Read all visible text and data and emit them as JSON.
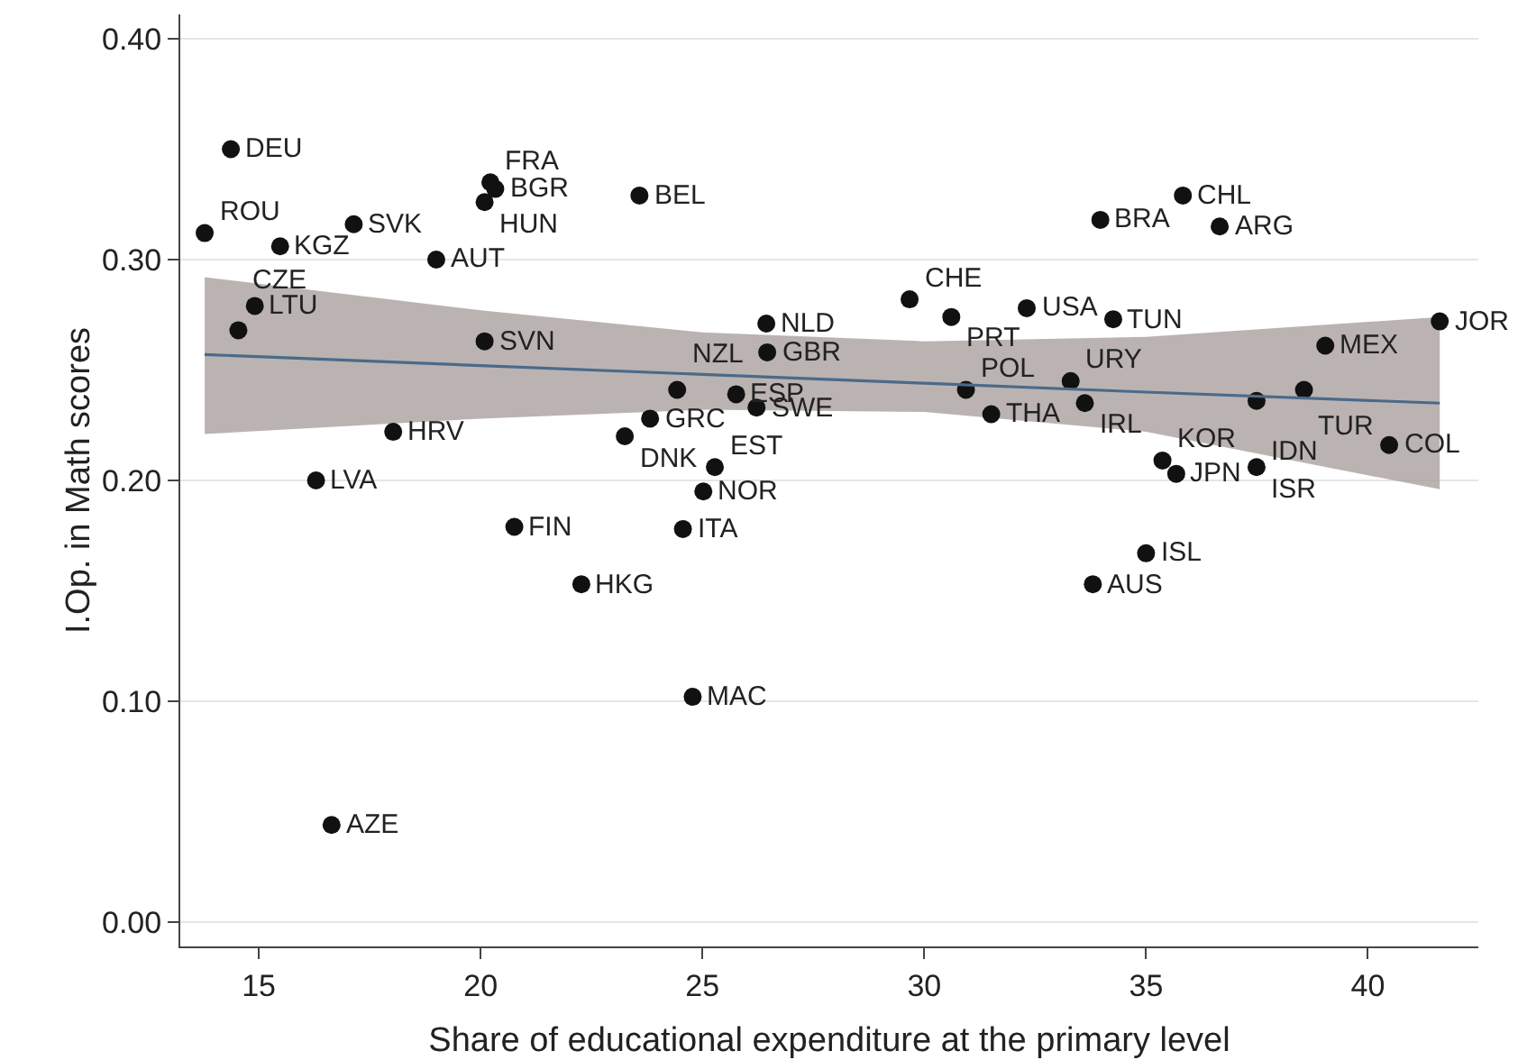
{
  "chart_data": {
    "type": "scatter",
    "xlabel": "Share of educational expenditure at the primary level",
    "ylabel": "I.Op. in Math scores",
    "xlim": [
      13.23,
      42.49
    ],
    "xticks": [
      15,
      20,
      25,
      30,
      35,
      40
    ],
    "ylim": [
      -0.011,
      0.411
    ],
    "yticks": [
      {
        "value": 0,
        "label": "0.00"
      },
      {
        "value": 0.1,
        "label": "0.10"
      },
      {
        "value": 0.2,
        "label": "0.20"
      },
      {
        "value": 0.3,
        "label": "0.30"
      },
      {
        "value": 0.4,
        "label": "0.40"
      }
    ],
    "grid": "y",
    "series": [
      {
        "color": "#111111",
        "marker": "circle",
        "x": [
          14.37,
          20.22,
          20.33,
          20.09,
          23.58,
          13.78,
          17.14,
          15.48,
          19.0,
          14.91,
          14.54,
          20.09,
          18.03,
          16.29,
          16.64,
          20.76,
          22.27,
          24.78,
          24.56,
          25.02,
          25.28,
          23.25,
          23.82,
          24.43,
          25.76,
          26.22,
          26.44,
          26.46,
          29.67,
          30.61,
          32.31,
          34.26,
          30.94,
          31.51,
          33.3,
          33.62,
          33.97,
          35.83,
          36.66,
          39.04,
          41.62,
          38.56,
          37.49,
          40.48,
          35.37,
          35.68,
          37.49,
          35.0,
          33.8
        ],
        "values": [
          0.35,
          0.335,
          0.332,
          0.326,
          0.329,
          0.312,
          0.316,
          0.306,
          0.3,
          0.279,
          0.268,
          0.263,
          0.222,
          0.2,
          0.044,
          0.179,
          0.153,
          0.102,
          0.178,
          0.195,
          0.206,
          0.22,
          0.228,
          0.241,
          0.239,
          0.233,
          0.271,
          0.258,
          0.282,
          0.274,
          0.278,
          0.273,
          0.241,
          0.23,
          0.245,
          0.235,
          0.318,
          0.329,
          0.315,
          0.261,
          0.272,
          0.241,
          0.236,
          0.216,
          0.209,
          0.203,
          0.206,
          0.167,
          0.153
        ],
        "value_labels": [
          "DEU",
          "FRA",
          "BGR",
          "HUN",
          "BEL",
          "ROU",
          "SVK",
          "KGZ",
          "AUT",
          "LTU",
          "CZE",
          "SVN",
          "HRV",
          "LVA",
          "AZE",
          "FIN",
          "HKG",
          "MAC",
          "ITA",
          "NOR",
          "EST",
          "DNK",
          "GRC",
          "NZL",
          "ESP",
          "SWE",
          "NLD",
          "GBR",
          "CHE",
          "PRT",
          "USA",
          "TUN",
          "POL",
          "THA",
          "URY",
          "IRL",
          "BRA",
          "CHL",
          "ARG",
          "MEX",
          "JOR",
          "TUR",
          "IDN",
          "COL",
          "KOR",
          "JPN",
          "ISR",
          "ISL",
          "AUS"
        ]
      },
      {
        "type": "line",
        "color": "#4a6a8a",
        "marker": "none",
        "x": [
          13.78,
          20,
          25,
          30,
          35,
          41.62
        ],
        "values": [
          0.257,
          0.252,
          0.248,
          0.244,
          0.24,
          0.235
        ],
        "lower": [
          0.221,
          0.228,
          0.232,
          0.231,
          0.222,
          0.196
        ],
        "upper": [
          0.292,
          0.277,
          0.267,
          0.263,
          0.265,
          0.274
        ]
      }
    ]
  }
}
